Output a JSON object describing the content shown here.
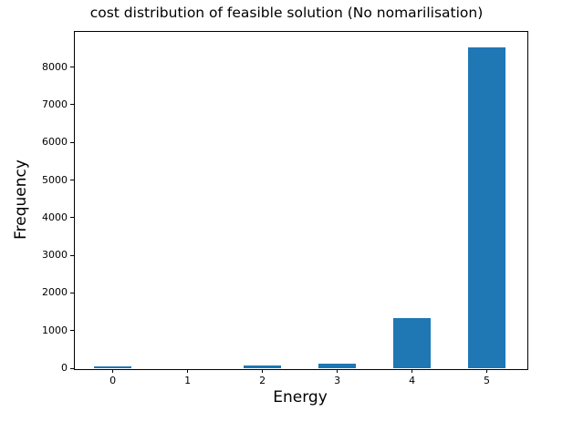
{
  "chart_data": {
    "type": "bar",
    "title": "cost distribution of feasible solution (No nomarilisation)",
    "xlabel": "Energy",
    "ylabel": "Frequency",
    "categories": [
      "0",
      "1",
      "2",
      "3",
      "4",
      "5"
    ],
    "x_positions": [
      0,
      1,
      2,
      3,
      4,
      5
    ],
    "values": [
      50,
      0,
      75,
      130,
      1330,
      8530
    ],
    "bar_width": 0.5,
    "bar_color": "#1f77b4",
    "xlim": [
      -0.52,
      5.53
    ],
    "ylim": [
      0,
      8960
    ],
    "yticks": [
      0,
      1000,
      2000,
      3000,
      4000,
      5000,
      6000,
      7000,
      8000
    ],
    "xticks": [
      0,
      1,
      2,
      3,
      4,
      5
    ],
    "grid": false,
    "legend": "none"
  },
  "figure": {
    "background_color": "#ffffff",
    "spine_color": "#000000",
    "text_color": "#000000"
  }
}
